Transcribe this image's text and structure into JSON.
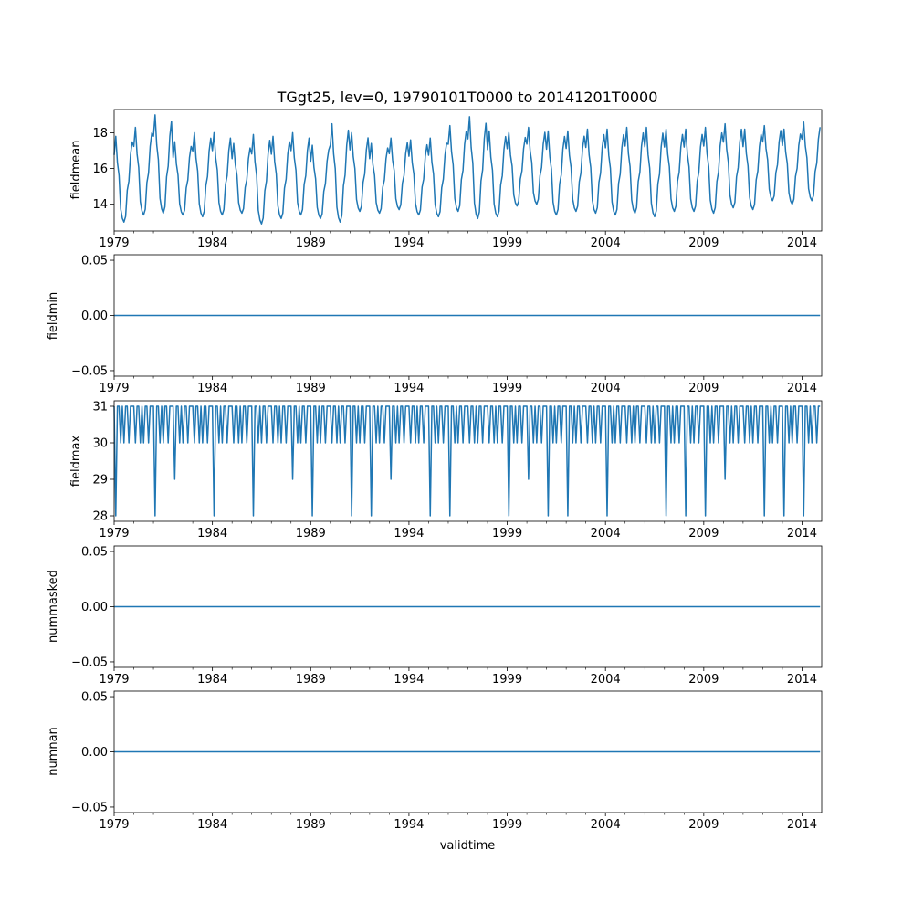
{
  "chart_data": {
    "type": "line",
    "title": "TGgt25, lev=0, 19790101T0000 to 20141201T0000",
    "xlabel": "validtime",
    "x_range": [
      "1979-01",
      "2014-12"
    ],
    "x_tick_labels": [
      "1979",
      "1984",
      "1989",
      "1994",
      "1999",
      "2004",
      "2009",
      "2014"
    ],
    "line_color": "#1f77b4",
    "panels": [
      {
        "ylabel": "fieldmean",
        "ylim": [
          12.5,
          19.3
        ],
        "yticks": [
          "14",
          "16",
          "18"
        ],
        "ytick_values": [
          14,
          16,
          18
        ],
        "monthly_climatology": [
          16.6,
          17.6,
          16.2,
          15.5,
          13.7,
          13.2,
          13.0,
          13.3,
          14.7,
          15.2,
          16.6,
          17.3
        ],
        "yearly_peak": [
          17.8,
          18.3,
          19.0,
          17.5,
          18.0,
          18.0,
          17.4,
          17.9,
          17.8,
          18.0,
          17.3,
          18.5,
          18.0,
          17.4,
          17.7,
          17.6,
          17.7,
          18.4,
          18.9,
          18.1,
          18.0,
          18.3,
          18.1,
          18.1,
          18.2,
          18.2,
          18.3,
          18.3,
          18.2,
          18.2,
          18.3,
          18.5,
          18.2,
          18.4,
          18.2,
          18.6
        ],
        "yearly_trough": [
          13.0,
          13.4,
          13.5,
          13.4,
          13.3,
          13.4,
          13.5,
          12.9,
          13.2,
          13.4,
          13.2,
          13.0,
          13.6,
          13.5,
          13.7,
          13.4,
          13.3,
          13.6,
          13.2,
          13.3,
          13.9,
          14.0,
          13.4,
          13.6,
          13.5,
          13.4,
          13.5,
          13.3,
          13.6,
          13.6,
          13.5,
          13.8,
          13.7,
          14.2,
          14.0,
          14.2
        ]
      },
      {
        "ylabel": "fieldmin",
        "ylim": [
          -0.055,
          0.055
        ],
        "yticks": [
          "0.05",
          "0.00",
          "−0.05"
        ],
        "ytick_values": [
          0.05,
          0.0,
          -0.05
        ],
        "constant_value": 0.0
      },
      {
        "ylabel": "fieldmax",
        "ylim": [
          27.85,
          31.15
        ],
        "yticks": [
          "31",
          "30",
          "29",
          "28"
        ],
        "ytick_values": [
          31,
          30,
          29,
          28
        ],
        "monthly_pattern": [
          31,
          30,
          31,
          31,
          30,
          31,
          30,
          31,
          31,
          30,
          31,
          31
        ],
        "february_values": [
          28,
          30,
          28,
          29,
          30,
          28,
          30,
          28,
          30,
          29,
          28,
          30,
          28,
          28,
          29,
          30,
          28,
          28,
          30,
          30,
          28,
          29,
          28,
          28,
          30,
          28,
          30,
          30,
          28,
          28,
          28,
          29,
          30,
          28,
          28,
          28
        ]
      },
      {
        "ylabel": "nummasked",
        "ylim": [
          -0.055,
          0.055
        ],
        "yticks": [
          "0.05",
          "0.00",
          "−0.05"
        ],
        "ytick_values": [
          0.05,
          0.0,
          -0.05
        ],
        "constant_value": 0.0
      },
      {
        "ylabel": "numnan",
        "ylim": [
          -0.055,
          0.055
        ],
        "yticks": [
          "0.05",
          "0.00",
          "−0.05"
        ],
        "ytick_values": [
          0.05,
          0.0,
          -0.05
        ],
        "constant_value": 0.0
      }
    ]
  }
}
